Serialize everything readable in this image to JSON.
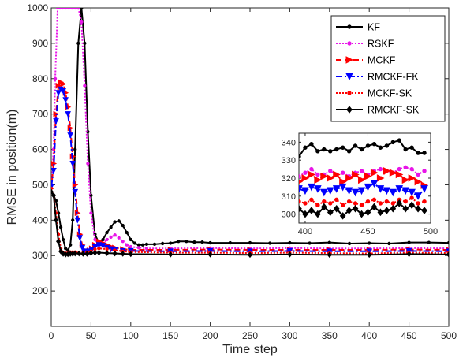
{
  "chart_data": {
    "type": "line",
    "xlabel": "Time step",
    "ylabel": "RMSE in position(m)",
    "xlim": [
      0,
      500
    ],
    "ylim": [
      100,
      1000
    ],
    "xticks": [
      0,
      50,
      100,
      150,
      200,
      250,
      300,
      350,
      400,
      450,
      500
    ],
    "yticks": [
      200,
      300,
      400,
      500,
      600,
      700,
      800,
      900,
      1000
    ],
    "grid": false,
    "legend_position": "top-right",
    "series": [
      {
        "name": "KF",
        "color": "#000000",
        "line": "solid",
        "marker": "dot",
        "x": [
          0,
          3,
          6,
          9,
          12,
          15,
          18,
          21,
          24,
          27,
          30,
          34,
          38,
          42,
          46,
          50,
          55,
          60,
          65,
          70,
          75,
          80,
          85,
          90,
          95,
          100,
          105,
          110,
          115,
          120,
          130,
          140,
          150,
          160,
          170,
          180,
          190,
          200,
          225,
          250,
          275,
          300,
          325,
          350,
          375,
          400,
          425,
          450,
          475,
          500
        ],
        "y": [
          480,
          470,
          455,
          420,
          380,
          345,
          320,
          315,
          330,
          400,
          600,
          900,
          1000,
          900,
          650,
          470,
          360,
          335,
          345,
          365,
          380,
          395,
          398,
          385,
          365,
          345,
          335,
          330,
          330,
          332,
          332,
          334,
          335,
          340,
          340,
          338,
          338,
          336,
          336,
          336,
          335,
          336,
          335,
          337,
          334,
          335,
          334,
          337,
          337,
          336
        ]
      },
      {
        "name": "RSKF",
        "color": "#e815e8",
        "line": "dotted",
        "marker": "dot",
        "x": [
          0,
          3,
          5,
          8,
          11,
          14,
          18,
          22,
          26,
          30,
          34,
          38,
          42,
          46,
          50,
          55,
          60,
          65,
          70,
          75,
          80,
          85,
          90,
          95,
          100,
          110,
          120,
          150,
          200,
          250,
          300,
          350,
          400,
          450,
          500
        ],
        "y": [
          480,
          600,
          800,
          1000,
          1000,
          1000,
          1000,
          1000,
          1000,
          1000,
          1000,
          960,
          780,
          560,
          420,
          345,
          330,
          335,
          345,
          352,
          358,
          350,
          340,
          330,
          325,
          322,
          320,
          320,
          321,
          320,
          321,
          320,
          320,
          321,
          320
        ]
      },
      {
        "name": "MCKF",
        "color": "#ff0000",
        "line": "dashed",
        "marker": "triangle-right",
        "x": [
          0,
          3,
          6,
          9,
          12,
          15,
          18,
          21,
          24,
          27,
          30,
          33,
          36,
          39,
          42,
          45,
          48,
          51,
          55,
          60,
          65,
          70,
          75,
          80,
          90,
          100,
          150,
          200,
          250,
          300,
          350,
          400,
          450,
          500
        ],
        "y": [
          490,
          560,
          700,
          780,
          790,
          785,
          760,
          720,
          660,
          580,
          500,
          420,
          360,
          330,
          315,
          312,
          314,
          320,
          330,
          340,
          335,
          330,
          325,
          322,
          318,
          316,
          316,
          317,
          316,
          316,
          316,
          316,
          317,
          316
        ]
      },
      {
        "name": "RMCKF-FK",
        "color": "#0000ff",
        "line": "dashdot",
        "marker": "triangle-down",
        "x": [
          0,
          3,
          6,
          9,
          12,
          15,
          18,
          21,
          24,
          27,
          30,
          33,
          36,
          39,
          42,
          45,
          48,
          51,
          55,
          60,
          65,
          70,
          75,
          80,
          90,
          100,
          150,
          200,
          250,
          300,
          350,
          400,
          450,
          500
        ],
        "y": [
          495,
          540,
          680,
          760,
          770,
          765,
          740,
          700,
          640,
          560,
          480,
          400,
          350,
          322,
          312,
          310,
          312,
          316,
          325,
          330,
          328,
          322,
          318,
          315,
          313,
          313,
          312,
          313,
          312,
          313,
          312,
          312,
          313,
          312
        ]
      },
      {
        "name": "MCKF-SK",
        "color": "#ff0000",
        "line": "dotted",
        "marker": "dot",
        "x": [
          0,
          3,
          6,
          9,
          12,
          15,
          18,
          21,
          24,
          27,
          30,
          35,
          40,
          45,
          50,
          55,
          60,
          70,
          80,
          90,
          100,
          150,
          200,
          250,
          300,
          350,
          400,
          450,
          500
        ],
        "y": [
          490,
          470,
          420,
          360,
          320,
          308,
          306,
          308,
          310,
          310,
          310,
          308,
          308,
          310,
          312,
          318,
          320,
          318,
          315,
          312,
          310,
          308,
          308,
          307,
          308,
          307,
          306,
          308,
          307
        ]
      },
      {
        "name": "RMCKF-SK",
        "color": "#000000",
        "line": "solid",
        "marker": "diamond",
        "x": [
          0,
          3,
          6,
          9,
          12,
          15,
          18,
          21,
          24,
          27,
          30,
          35,
          40,
          45,
          50,
          55,
          60,
          70,
          80,
          90,
          100,
          150,
          200,
          250,
          300,
          350,
          400,
          450,
          500
        ],
        "y": [
          480,
          470,
          400,
          340,
          312,
          305,
          303,
          304,
          305,
          305,
          306,
          306,
          305,
          305,
          307,
          308,
          308,
          307,
          306,
          305,
          304,
          303,
          303,
          302,
          303,
          302,
          302,
          304,
          303
        ]
      }
    ],
    "inset": {
      "xlim": [
        395,
        500
      ],
      "ylim": [
        295,
        345
      ],
      "xticks": [
        400,
        450,
        500
      ],
      "yticks": [
        300,
        310,
        320,
        330,
        340
      ],
      "series": {
        "KF": {
          "x": [
            395,
            400,
            405,
            410,
            415,
            420,
            425,
            430,
            435,
            440,
            445,
            450,
            455,
            460,
            465,
            470,
            475,
            480,
            485,
            490,
            495
          ],
          "y": [
            332,
            337,
            339,
            335,
            336,
            335,
            336,
            337,
            335,
            338,
            336,
            338,
            339,
            337,
            338,
            340,
            341,
            336,
            337,
            334,
            334
          ]
        },
        "RSKF": {
          "x": [
            395,
            400,
            405,
            410,
            415,
            420,
            425,
            430,
            435,
            440,
            445,
            450,
            455,
            460,
            465,
            470,
            475,
            480,
            485,
            490,
            495
          ],
          "y": [
            321,
            323,
            325,
            322,
            322,
            324,
            322,
            323,
            321,
            323,
            324,
            322,
            324,
            325,
            324,
            323,
            325,
            326,
            325,
            322,
            324
          ]
        },
        "MCKF": {
          "x": [
            395,
            400,
            405,
            410,
            415,
            420,
            425,
            430,
            435,
            440,
            445,
            450,
            455,
            460,
            465,
            470,
            475,
            480,
            485,
            490,
            495
          ],
          "y": [
            318,
            320,
            322,
            319,
            321,
            320,
            322,
            318,
            320,
            322,
            319,
            321,
            323,
            320,
            324,
            323,
            322,
            319,
            320,
            318,
            316
          ]
        },
        "RMCKF-FK": {
          "x": [
            395,
            400,
            405,
            410,
            415,
            420,
            425,
            430,
            435,
            440,
            445,
            450,
            455,
            460,
            465,
            470,
            475,
            480,
            485,
            490,
            495
          ],
          "y": [
            314,
            313,
            315,
            314,
            312,
            313,
            314,
            315,
            313,
            312,
            313,
            315,
            317,
            314,
            313,
            312,
            314,
            313,
            312,
            310,
            314
          ]
        },
        "MCKF-SK": {
          "x": [
            395,
            400,
            405,
            410,
            415,
            420,
            425,
            430,
            435,
            440,
            445,
            450,
            455,
            460,
            465,
            470,
            475,
            480,
            485,
            490,
            495
          ],
          "y": [
            307,
            306,
            308,
            305,
            307,
            306,
            308,
            305,
            307,
            306,
            305,
            307,
            308,
            306,
            307,
            306,
            308,
            307,
            309,
            306,
            307
          ]
        },
        "RMCKF-SK": {
          "x": [
            395,
            400,
            405,
            410,
            415,
            420,
            425,
            430,
            435,
            440,
            445,
            450,
            455,
            460,
            465,
            470,
            475,
            480,
            485,
            490,
            495
          ],
          "y": [
            303,
            300,
            302,
            300,
            304,
            301,
            303,
            299,
            302,
            303,
            300,
            301,
            304,
            301,
            302,
            303,
            306,
            303,
            305,
            303,
            302
          ]
        }
      }
    }
  }
}
